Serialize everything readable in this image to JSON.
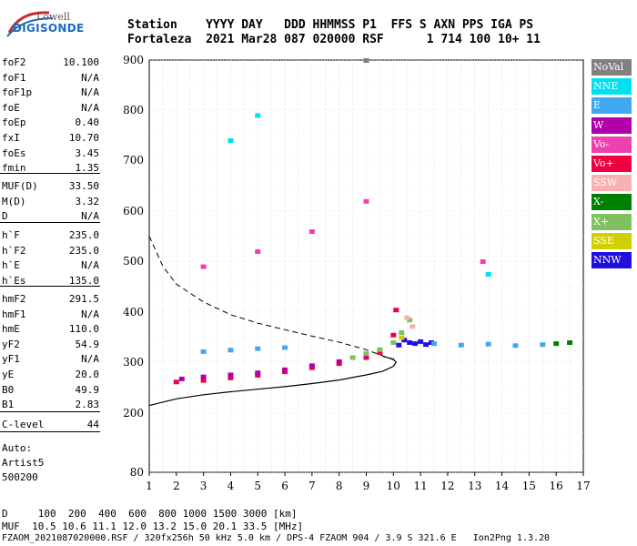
{
  "logo": {
    "line1": "Lowell",
    "line2": "DIGISONDE"
  },
  "header": {
    "row1": "Station    YYYY DAY   DDD HHMMSS P1  FFS S AXN PPS IGA PS",
    "row2": "Fortaleza  2021 Mar28 087 020000 RSF      1 714 100 10+ 11"
  },
  "params_group1": [
    {
      "name": "foF2",
      "value": "10.100"
    },
    {
      "name": "foF1",
      "value": "N/A"
    },
    {
      "name": "foF1p",
      "value": "N/A"
    },
    {
      "name": "foE",
      "value": "N/A"
    },
    {
      "name": "foEp",
      "value": "0.40"
    },
    {
      "name": "fxI",
      "value": "10.70"
    },
    {
      "name": "foEs",
      "value": "3.45"
    },
    {
      "name": "fmin",
      "value": "1.35"
    }
  ],
  "params_group2": [
    {
      "name": "MUF(D)",
      "value": "33.50"
    },
    {
      "name": "M(D)",
      "value": "3.32"
    },
    {
      "name": "D",
      "value": "N/A"
    }
  ],
  "params_group3": [
    {
      "name": "h`F",
      "value": "235.0"
    },
    {
      "name": "h`F2",
      "value": "235.0"
    },
    {
      "name": "h`E",
      "value": "N/A"
    },
    {
      "name": "h`Es",
      "value": "135.0"
    }
  ],
  "params_group4": [
    {
      "name": "hmF2",
      "value": "291.5"
    },
    {
      "name": "hmF1",
      "value": "N/A"
    },
    {
      "name": "hmE",
      "value": "110.0"
    },
    {
      "name": "yF2",
      "value": "54.9"
    },
    {
      "name": "yF1",
      "value": "N/A"
    },
    {
      "name": "yE",
      "value": "20.0"
    },
    {
      "name": "B0",
      "value": "49.9"
    },
    {
      "name": "B1",
      "value": "2.83"
    }
  ],
  "clevel": {
    "name": "C-level",
    "value": "44"
  },
  "auto": {
    "line1": "Auto:",
    "line2": "Artist5",
    "line3": "500200"
  },
  "legend": [
    {
      "label": "NoVal",
      "color": "#808080"
    },
    {
      "label": "NNE",
      "color": "#00e0f0"
    },
    {
      "label": "E",
      "color": "#40a8f0"
    },
    {
      "label": "W",
      "color": "#b000a8"
    },
    {
      "label": "Vo-",
      "color": "#f040b0"
    },
    {
      "label": "Vo+",
      "color": "#f00040"
    },
    {
      "label": "SSW",
      "color": "#f8b0b0"
    },
    {
      "label": "X-",
      "color": "#008000"
    },
    {
      "label": "X+",
      "color": "#80c060"
    },
    {
      "label": "SSE",
      "color": "#d0d000"
    },
    {
      "label": "NNW",
      "color": "#2010e0"
    }
  ],
  "bottom": {
    "d_row": "D     100  200  400  600  800 1000 1500 3000 [km]",
    "muf_row": "MUF  10.5 10.6 11.1 12.0 13.2 15.0 20.1 33.5 [MHz]",
    "file_row": "FZAOM_2021087020000.RSF / 320fx256h 50 kHz 5.0 km / DPS-4 FZAOM 904 / 3.9 S 321.6 E   Ion2Png 1.3.20"
  },
  "chart_data": {
    "type": "scatter",
    "title": "",
    "xlabel": "",
    "ylabel": "",
    "x_ticks": [
      1,
      2,
      3,
      4,
      5,
      6,
      7,
      8,
      9,
      10,
      11,
      12,
      13,
      14,
      15,
      16,
      17
    ],
    "y_ticks": [
      80,
      200,
      300,
      400,
      500,
      600,
      700,
      800,
      900
    ],
    "xlim": [
      1,
      17
    ],
    "ylim": [
      80,
      900
    ],
    "grid": true,
    "legend_position": "right",
    "series": [
      {
        "name": "NNW",
        "color": "#2010e0",
        "x": [
          10.2,
          10.4,
          10.6,
          10.8,
          11.0,
          11.2,
          11.4
        ],
        "y": [
          335,
          345,
          340,
          338,
          342,
          336,
          340
        ]
      },
      {
        "name": "Vo+",
        "color": "#f00040",
        "x": [
          2.0,
          3.0,
          4.0,
          5.0,
          6.0,
          7.0,
          8.0,
          9.0,
          9.5,
          10.0,
          10.1
        ],
        "y": [
          262,
          265,
          270,
          275,
          282,
          290,
          298,
          310,
          320,
          355,
          405
        ]
      },
      {
        "name": "W",
        "color": "#b000a8",
        "x": [
          2.2,
          3.0,
          4.0,
          5.0,
          6.0,
          7.0,
          8.0,
          9.0
        ],
        "y": [
          268,
          272,
          276,
          280,
          286,
          294,
          302,
          316
        ]
      },
      {
        "name": "E",
        "color": "#40a8f0",
        "x": [
          3.0,
          4.0,
          5.0,
          6.0,
          11.5,
          12.5,
          13.5,
          14.5,
          15.5
        ],
        "y": [
          322,
          325,
          328,
          330,
          338,
          335,
          337,
          334,
          336
        ]
      },
      {
        "name": "X+",
        "color": "#80c060",
        "x": [
          8.5,
          9.0,
          9.5,
          10.0,
          10.3,
          10.6
        ],
        "y": [
          310,
          318,
          326,
          340,
          360,
          385
        ]
      },
      {
        "name": "Vo-",
        "color": "#f040b0",
        "x": [
          3.0,
          5.0,
          7.0,
          9.0,
          13.3
        ],
        "y": [
          490,
          520,
          560,
          620,
          500
        ]
      },
      {
        "name": "NNE",
        "color": "#00e0f0",
        "x": [
          4.0,
          5.0,
          13.5
        ],
        "y": [
          740,
          790,
          475
        ]
      },
      {
        "name": "X-",
        "color": "#008000",
        "x": [
          16.0,
          16.5
        ],
        "y": [
          338,
          340
        ]
      },
      {
        "name": "SSW",
        "color": "#f8b0b0",
        "x": [
          10.5,
          10.7
        ],
        "y": [
          390,
          372
        ]
      },
      {
        "name": "SSE",
        "color": "#d0d000",
        "x": [
          10.3
        ],
        "y": [
          350
        ]
      },
      {
        "name": "NoVal",
        "color": "#808080",
        "x": [
          9.0
        ],
        "y": [
          900
        ]
      }
    ],
    "curves": {
      "profile_solid": {
        "x": [
          1.0,
          2.0,
          3.0,
          4.0,
          5.0,
          6.0,
          7.0,
          8.0,
          9.0,
          9.6,
          10.0,
          10.1,
          10.0,
          9.6
        ],
        "y": [
          215,
          228,
          236,
          242,
          247,
          252,
          258,
          265,
          275,
          282,
          292,
          300,
          306,
          312
        ]
      },
      "muf_dashed": {
        "x": [
          1.0,
          1.5,
          2.0,
          3.0,
          4.0,
          5.0,
          6.0,
          7.0,
          8.0,
          9.0,
          10.0
        ],
        "y": [
          550,
          490,
          455,
          420,
          395,
          378,
          365,
          352,
          340,
          325,
          305
        ]
      }
    }
  }
}
